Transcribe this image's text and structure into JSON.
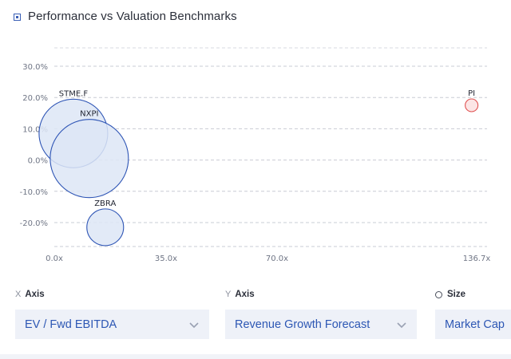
{
  "header": {
    "title": "Performance vs Valuation Benchmarks",
    "icon": "square-dot-icon"
  },
  "chart_data": {
    "type": "bubble",
    "title": "Performance vs Valuation Benchmarks",
    "x_ticks": [
      "0.0x",
      "35.0x",
      "70.0x",
      "136.7x"
    ],
    "y_ticks": [
      "30.0%",
      "20.0%",
      "10.0%",
      "0.0%",
      "-10.0%",
      "-20.0%"
    ],
    "xlim": [
      0,
      136.7
    ],
    "ylim": [
      -28,
      33
    ],
    "x_break": "axis jumps from 70.0x to 136.7x",
    "grid": "horizontal dashed",
    "points": [
      {
        "label": "STME.F",
        "x": 6.0,
        "y": 8.5,
        "size_rank": 2,
        "color": "#2e55b5",
        "fill": "#dde6f6"
      },
      {
        "label": "NXPI",
        "x": 11.0,
        "y": 0.5,
        "size_rank": 1,
        "color": "#2e55b5",
        "fill": "#dde6f6"
      },
      {
        "label": "ZBRA",
        "x": 16.0,
        "y": -21.5,
        "size_rank": 3,
        "color": "#2e55b5",
        "fill": "#dde6f6"
      },
      {
        "label": "PI",
        "x": 135.0,
        "y": 17.5,
        "size_rank": 4,
        "color": "#e05252",
        "fill": "#fbe0e0"
      }
    ]
  },
  "controls": {
    "x_axis": {
      "letter": "X",
      "label": "Axis",
      "value": "EV / Fwd EBITDA"
    },
    "y_axis": {
      "letter": "Y",
      "label": "Axis",
      "value": "Revenue Growth Forecast"
    },
    "size": {
      "label": "Size",
      "value": "Market Cap"
    }
  }
}
